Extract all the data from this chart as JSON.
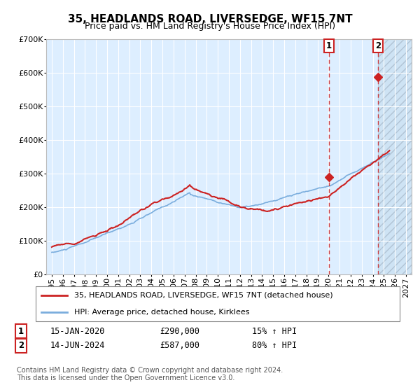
{
  "title": "35, HEADLANDS ROAD, LIVERSEDGE, WF15 7NT",
  "subtitle": "Price paid vs. HM Land Registry's House Price Index (HPI)",
  "ylim": [
    0,
    700000
  ],
  "yticks": [
    0,
    100000,
    200000,
    300000,
    400000,
    500000,
    600000,
    700000
  ],
  "ytick_labels": [
    "£0",
    "£100K",
    "£200K",
    "£300K",
    "£400K",
    "£500K",
    "£600K",
    "£700K"
  ],
  "xlim_start": 1994.5,
  "xlim_end": 2027.5,
  "hpi_color": "#7aaddd",
  "price_color": "#cc2222",
  "bg_color": "#ddeeff",
  "grid_color": "#ffffff",
  "sale1_date": 2020.04,
  "sale1_price": 290000,
  "sale2_date": 2024.45,
  "sale2_price": 587000,
  "legend_line1": "35, HEADLANDS ROAD, LIVERSEDGE, WF15 7NT (detached house)",
  "legend_line2": "HPI: Average price, detached house, Kirklees",
  "footnote": "Contains HM Land Registry data © Crown copyright and database right 2024.\nThis data is licensed under the Open Government Licence v3.0.",
  "hatched_start": 2024.45,
  "title_fontsize": 11,
  "subtitle_fontsize": 9,
  "tick_fontsize": 8
}
